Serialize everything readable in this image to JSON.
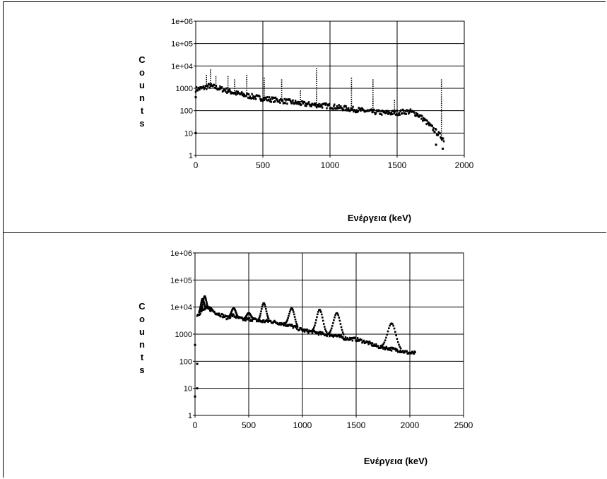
{
  "chart_data": [
    {
      "type": "scatter",
      "xlabel": "Ενέργεια (keV)",
      "ylabel": "Counts",
      "log_y": true,
      "grid": true,
      "xlim": [
        0,
        2000
      ],
      "ylim": [
        1,
        1000000
      ],
      "x_ticks": [
        "0",
        "500",
        "1000",
        "1500",
        "2000"
      ],
      "y_ticks": [
        "1",
        "10",
        "100",
        "1000",
        "1e+04",
        "1e+05",
        "1e+06"
      ],
      "continuum": [
        [
          0,
          900
        ],
        [
          50,
          1000
        ],
        [
          100,
          1300
        ],
        [
          150,
          1100
        ],
        [
          200,
          900
        ],
        [
          300,
          600
        ],
        [
          400,
          450
        ],
        [
          500,
          350
        ],
        [
          600,
          300
        ],
        [
          700,
          250
        ],
        [
          800,
          200
        ],
        [
          900,
          180
        ],
        [
          1000,
          160
        ],
        [
          1100,
          130
        ],
        [
          1200,
          110
        ],
        [
          1300,
          90
        ],
        [
          1400,
          80
        ],
        [
          1500,
          80
        ],
        [
          1550,
          90
        ],
        [
          1600,
          90
        ],
        [
          1650,
          70
        ],
        [
          1700,
          40
        ],
        [
          1750,
          20
        ],
        [
          1800,
          10
        ],
        [
          1850,
          5
        ]
      ],
      "peaks": [
        [
          80,
          4000
        ],
        [
          110,
          7000
        ],
        [
          150,
          3500
        ],
        [
          240,
          3500
        ],
        [
          290,
          2500
        ],
        [
          380,
          4000
        ],
        [
          510,
          3000
        ],
        [
          640,
          2500
        ],
        [
          780,
          800
        ],
        [
          900,
          8000
        ],
        [
          1160,
          3000
        ],
        [
          1320,
          2500
        ],
        [
          1480,
          300
        ],
        [
          1830,
          2500
        ]
      ],
      "outliers": [
        [
          0,
          10
        ],
        [
          0,
          400
        ],
        [
          1790,
          3
        ],
        [
          1840,
          2
        ]
      ]
    },
    {
      "type": "scatter",
      "xlabel": "Ενέργεια (keV)",
      "ylabel": "Counts",
      "log_y": true,
      "grid": true,
      "xlim": [
        0,
        2500
      ],
      "ylim": [
        1,
        1000000
      ],
      "x_ticks": [
        "0",
        "500",
        "1000",
        "1500",
        "2000",
        "2500"
      ],
      "y_ticks": [
        "1",
        "10",
        "100",
        "1000",
        "1e+04",
        "1e+05",
        "1e+06"
      ],
      "continuum": [
        [
          20,
          5000
        ],
        [
          60,
          7000
        ],
        [
          100,
          9000
        ],
        [
          150,
          8000
        ],
        [
          200,
          6000
        ],
        [
          250,
          5000
        ],
        [
          300,
          4000
        ],
        [
          350,
          5000
        ],
        [
          400,
          4000
        ],
        [
          450,
          3500
        ],
        [
          500,
          3500
        ],
        [
          550,
          3500
        ],
        [
          600,
          3000
        ],
        [
          700,
          3000
        ],
        [
          800,
          2500
        ],
        [
          900,
          2000
        ],
        [
          1000,
          1400
        ],
        [
          1100,
          1200
        ],
        [
          1200,
          1000
        ],
        [
          1300,
          900
        ],
        [
          1400,
          700
        ],
        [
          1500,
          650
        ],
        [
          1600,
          500
        ],
        [
          1700,
          350
        ],
        [
          1800,
          300
        ],
        [
          1900,
          250
        ],
        [
          2000,
          200
        ],
        [
          2050,
          200
        ]
      ],
      "peaks": [
        [
          70,
          20000
        ],
        [
          90,
          25000
        ],
        [
          130,
          10000
        ],
        [
          360,
          9000
        ],
        [
          500,
          6000
        ],
        [
          640,
          14000
        ],
        [
          900,
          9000
        ],
        [
          1160,
          8000
        ],
        [
          1320,
          6000
        ],
        [
          1830,
          2500
        ]
      ],
      "outliers": [
        [
          0,
          5
        ],
        [
          0,
          400
        ],
        [
          20,
          80
        ],
        [
          20,
          10
        ]
      ]
    }
  ]
}
